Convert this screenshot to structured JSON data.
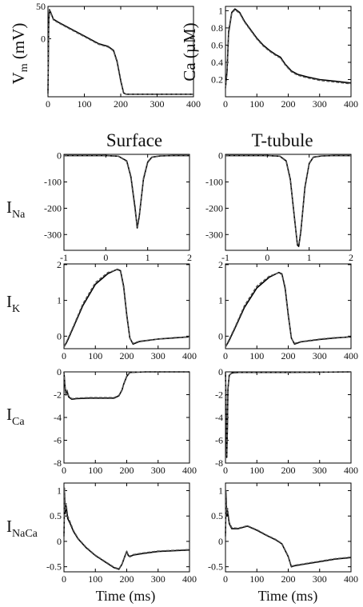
{
  "chart_data": [
    {
      "id": "vm",
      "type": "line",
      "ylabel": "V",
      "ylabel_sub": "m",
      "ylabel_unit": " (mV)",
      "xlim": [
        0,
        400
      ],
      "ylim": [
        -90,
        50
      ],
      "xticks": [
        0,
        100,
        200,
        300,
        400
      ],
      "yticks": [
        0,
        50
      ],
      "ytick_labels": [
        "0",
        "50"
      ],
      "series": [
        {
          "style": "solid",
          "x": [
            0,
            2,
            4,
            8,
            15,
            30,
            60,
            100,
            140,
            165,
            180,
            190,
            200,
            208,
            215,
            220,
            260,
            320,
            400
          ],
          "y": [
            -85,
            20,
            45,
            40,
            30,
            25,
            16,
            4,
            -8,
            -12,
            -18,
            -35,
            -65,
            -84,
            -86,
            -86,
            -86,
            -86,
            -86
          ]
        },
        {
          "style": "dashed",
          "x": [
            0,
            2,
            4,
            8,
            15,
            30,
            60,
            100,
            140,
            165,
            180,
            190,
            200,
            208,
            215,
            220,
            260,
            320,
            400
          ],
          "y": [
            -85,
            20,
            44,
            39,
            29,
            24,
            15,
            3,
            -9,
            -13,
            -19,
            -37,
            -67,
            -85,
            -86,
            -86,
            -86,
            -86,
            -86
          ]
        }
      ]
    },
    {
      "id": "ca",
      "type": "line",
      "ylabel": "Ca (µM)",
      "xlim": [
        0,
        400
      ],
      "ylim": [
        0,
        1.05
      ],
      "xticks": [
        0,
        100,
        200,
        300,
        400
      ],
      "yticks": [
        0.2,
        0.4,
        0.6,
        0.8,
        1
      ],
      "ytick_labels": [
        "0.2",
        "0.4",
        "0.6",
        "0.8",
        "1"
      ],
      "series": [
        {
          "style": "solid",
          "x": [
            0,
            5,
            10,
            20,
            30,
            45,
            60,
            80,
            100,
            120,
            140,
            160,
            175,
            190,
            210,
            230,
            260,
            300,
            350,
            400
          ],
          "y": [
            0.1,
            0.3,
            0.75,
            0.98,
            1.02,
            0.98,
            0.88,
            0.78,
            0.68,
            0.6,
            0.54,
            0.49,
            0.46,
            0.38,
            0.3,
            0.26,
            0.23,
            0.2,
            0.18,
            0.16
          ]
        },
        {
          "style": "dashed",
          "x": [
            0,
            5,
            10,
            20,
            30,
            45,
            60,
            80,
            100,
            120,
            140,
            160,
            175,
            190,
            210,
            230,
            260,
            300,
            350,
            400
          ],
          "y": [
            0.1,
            0.28,
            0.72,
            0.97,
            1.01,
            0.97,
            0.87,
            0.77,
            0.67,
            0.59,
            0.53,
            0.48,
            0.45,
            0.37,
            0.29,
            0.25,
            0.22,
            0.19,
            0.17,
            0.15
          ]
        }
      ]
    },
    {
      "id": "ina_s",
      "type": "line",
      "title": "Surface",
      "xlim": [
        -1,
        2
      ],
      "ylim": [
        -360,
        5
      ],
      "xticks": [
        -1,
        0,
        1,
        2
      ],
      "yticks": [
        0,
        -100,
        -200,
        -300
      ],
      "ytick_labels": [
        "0",
        "-100",
        "-200",
        "-300"
      ],
      "series": [
        {
          "style": "solid",
          "x": [
            -1,
            0,
            0.3,
            0.5,
            0.6,
            0.7,
            0.75,
            0.8,
            0.9,
            1.0,
            1.1,
            1.3,
            1.6,
            2
          ],
          "y": [
            0,
            0,
            -2,
            -20,
            -80,
            -200,
            -275,
            -230,
            -90,
            -25,
            -6,
            -1,
            0,
            0
          ]
        },
        {
          "style": "dashed",
          "x": [
            -1,
            0,
            0.3,
            0.5,
            0.6,
            0.7,
            0.75,
            0.8,
            0.9,
            1.0,
            1.1,
            1.3,
            1.6,
            2
          ],
          "y": [
            0,
            0,
            -2,
            -22,
            -85,
            -210,
            -270,
            -225,
            -85,
            -22,
            -5,
            -1,
            0,
            0
          ]
        }
      ]
    },
    {
      "id": "ina_t",
      "type": "line",
      "title": "T-tubule",
      "xlim": [
        -1,
        2
      ],
      "ylim": [
        -360,
        5
      ],
      "xticks": [
        -1,
        0,
        1,
        2
      ],
      "yticks": [
        0,
        -100,
        -200,
        -300
      ],
      "ytick_labels": [
        "0",
        "-100",
        "-200",
        "-300"
      ],
      "series": [
        {
          "style": "solid",
          "x": [
            -1,
            0,
            0.3,
            0.45,
            0.55,
            0.65,
            0.72,
            0.75,
            0.8,
            0.9,
            1.0,
            1.1,
            1.3,
            1.6,
            2
          ],
          "y": [
            0,
            0,
            -2,
            -20,
            -90,
            -240,
            -340,
            -345,
            -290,
            -120,
            -30,
            -6,
            -1,
            0,
            0
          ]
        },
        {
          "style": "dashed",
          "x": [
            -1,
            0,
            0.3,
            0.45,
            0.55,
            0.65,
            0.72,
            0.75,
            0.8,
            0.9,
            1.0,
            1.1,
            1.3,
            1.6,
            2
          ],
          "y": [
            0,
            0,
            -2,
            -22,
            -95,
            -245,
            -335,
            -340,
            -285,
            -115,
            -28,
            -5,
            -1,
            0,
            0
          ]
        }
      ]
    },
    {
      "id": "ik_s",
      "type": "line",
      "xlim": [
        0,
        400
      ],
      "ylim": [
        -0.35,
        2.02
      ],
      "xticks": [
        0,
        100,
        200,
        300,
        400
      ],
      "yticks": [
        0,
        1,
        2
      ],
      "ytick_labels": [
        "0",
        "1",
        "2"
      ],
      "series": [
        {
          "style": "solid",
          "x": [
            0,
            10,
            30,
            60,
            100,
            140,
            170,
            180,
            190,
            200,
            210,
            220,
            240,
            300,
            350,
            400
          ],
          "y": [
            -0.3,
            -0.15,
            0.25,
            0.85,
            1.45,
            1.75,
            1.87,
            1.83,
            1.4,
            0.6,
            -0.05,
            -0.22,
            -0.15,
            -0.08,
            -0.05,
            -0.02
          ]
        },
        {
          "style": "dashed",
          "x": [
            0,
            10,
            30,
            60,
            100,
            140,
            170,
            180,
            190,
            200,
            210,
            220,
            240,
            300,
            350,
            400
          ],
          "y": [
            -0.3,
            -0.12,
            0.28,
            0.9,
            1.5,
            1.78,
            1.86,
            1.8,
            1.35,
            0.55,
            -0.06,
            -0.2,
            -0.14,
            -0.08,
            -0.04,
            -0.02
          ]
        }
      ]
    },
    {
      "id": "ik_t",
      "type": "line",
      "xlim": [
        0,
        400
      ],
      "ylim": [
        -0.35,
        2.02
      ],
      "xticks": [
        0,
        100,
        200,
        300,
        400
      ],
      "yticks": [
        0,
        1,
        2
      ],
      "ytick_labels": [
        "0",
        "1",
        "2"
      ],
      "series": [
        {
          "style": "solid",
          "x": [
            0,
            10,
            30,
            60,
            100,
            140,
            170,
            180,
            190,
            200,
            210,
            220,
            240,
            300,
            350,
            400
          ],
          "y": [
            -0.3,
            -0.15,
            0.22,
            0.8,
            1.35,
            1.65,
            1.78,
            1.74,
            1.35,
            0.6,
            -0.05,
            -0.22,
            -0.16,
            -0.09,
            -0.05,
            -0.02
          ]
        },
        {
          "style": "dashed",
          "x": [
            0,
            10,
            30,
            60,
            100,
            140,
            170,
            180,
            190,
            200,
            210,
            220,
            240,
            300,
            350,
            400
          ],
          "y": [
            -0.3,
            -0.12,
            0.25,
            0.85,
            1.4,
            1.68,
            1.77,
            1.72,
            1.3,
            0.55,
            -0.06,
            -0.2,
            -0.15,
            -0.08,
            -0.04,
            -0.02
          ]
        }
      ]
    },
    {
      "id": "ica_s",
      "type": "line",
      "xlim": [
        0,
        400
      ],
      "ylim": [
        -8,
        0
      ],
      "xticks": [
        0,
        100,
        200,
        300,
        400
      ],
      "yticks": [
        0,
        -2,
        -4,
        -6,
        -8
      ],
      "ytick_labels": [
        "0",
        "-2",
        "-4",
        "-6",
        "-8"
      ],
      "series": [
        {
          "style": "solid",
          "x": [
            0,
            3,
            6,
            10,
            15,
            25,
            40,
            80,
            120,
            160,
            175,
            185,
            190,
            200,
            210,
            260,
            400
          ],
          "y": [
            0,
            -1.2,
            -2.0,
            -1.7,
            -2.2,
            -2.4,
            -2.35,
            -2.3,
            -2.3,
            -2.3,
            -2.1,
            -1.6,
            -1.1,
            -0.4,
            -0.05,
            0,
            0
          ]
        },
        {
          "style": "dashed",
          "x": [
            0,
            3,
            6,
            10,
            15,
            25,
            40,
            80,
            120,
            160,
            175,
            185,
            190,
            200,
            210,
            260,
            400
          ],
          "y": [
            0,
            -1.1,
            -2.1,
            -1.6,
            -2.1,
            -2.35,
            -2.3,
            -2.25,
            -2.25,
            -2.25,
            -2.05,
            -1.55,
            -1.05,
            -0.35,
            -0.05,
            0,
            0
          ]
        }
      ]
    },
    {
      "id": "ica_t",
      "type": "line",
      "xlim": [
        0,
        400
      ],
      "ylim": [
        -8,
        0
      ],
      "xticks": [
        0,
        100,
        200,
        300,
        400
      ],
      "yticks": [
        0,
        -2,
        -4,
        -6,
        -8
      ],
      "ytick_labels": [
        "0",
        "-2",
        "-4",
        "-6",
        "-8"
      ],
      "series": [
        {
          "style": "solid",
          "x": [
            0,
            2,
            4,
            6,
            8,
            12,
            20,
            40,
            100,
            200,
            400
          ],
          "y": [
            0,
            -3,
            -7.5,
            -5,
            -1.5,
            -0.3,
            -0.1,
            -0.05,
            -0.05,
            -0.05,
            0
          ]
        },
        {
          "style": "dashed",
          "x": [
            0,
            2,
            4,
            6,
            8,
            12,
            20,
            40,
            100,
            200,
            400
          ],
          "y": [
            0,
            -2.8,
            -7.3,
            -4.8,
            -1.4,
            -0.3,
            -0.1,
            -0.05,
            -0.05,
            -0.05,
            0
          ]
        }
      ]
    },
    {
      "id": "inaca_s",
      "type": "line",
      "xlim": [
        0,
        400
      ],
      "ylim": [
        -0.6,
        1.15
      ],
      "xticks": [
        0,
        100,
        200,
        300,
        400
      ],
      "yticks": [
        1,
        0.5,
        0,
        -0.5
      ],
      "ytick_labels": [
        "1",
        "0.5",
        "0",
        "-0.5"
      ],
      "series": [
        {
          "style": "solid",
          "x": [
            0,
            2,
            4,
            7,
            12,
            20,
            30,
            45,
            70,
            100,
            130,
            160,
            175,
            185,
            195,
            200,
            205,
            210,
            220,
            250,
            300,
            400
          ],
          "y": [
            0.1,
            0.9,
            0.55,
            0.7,
            0.45,
            0.35,
            0.2,
            0.05,
            -0.12,
            -0.28,
            -0.4,
            -0.52,
            -0.55,
            -0.45,
            -0.28,
            -0.2,
            -0.28,
            -0.3,
            -0.27,
            -0.24,
            -0.2,
            -0.17
          ]
        },
        {
          "style": "dashed",
          "x": [
            0,
            2,
            4,
            7,
            12,
            20,
            30,
            45,
            70,
            100,
            130,
            160,
            175,
            185,
            195,
            200,
            205,
            210,
            220,
            250,
            300,
            400
          ],
          "y": [
            0.1,
            1.05,
            0.6,
            0.75,
            0.5,
            0.38,
            0.22,
            0.06,
            -0.11,
            -0.27,
            -0.39,
            -0.51,
            -0.54,
            -0.44,
            -0.27,
            -0.19,
            -0.27,
            -0.29,
            -0.26,
            -0.23,
            -0.19,
            -0.16
          ]
        }
      ]
    },
    {
      "id": "inaca_t",
      "type": "line",
      "xlim": [
        0,
        400
      ],
      "ylim": [
        -0.6,
        1.15
      ],
      "xticks": [
        0,
        100,
        200,
        300,
        400
      ],
      "yticks": [
        1,
        0.5,
        0,
        -0.5
      ],
      "ytick_labels": [
        "1",
        "0.5",
        "0",
        "-0.5"
      ],
      "series": [
        {
          "style": "solid",
          "x": [
            0,
            2,
            4,
            7,
            12,
            20,
            40,
            70,
            100,
            130,
            160,
            180,
            200,
            210,
            220,
            250,
            300,
            350,
            400
          ],
          "y": [
            0.1,
            0.9,
            0.5,
            0.6,
            0.35,
            0.25,
            0.25,
            0.3,
            0.22,
            0.12,
            0.03,
            -0.05,
            -0.3,
            -0.5,
            -0.48,
            -0.45,
            -0.4,
            -0.35,
            -0.32
          ]
        },
        {
          "style": "dashed",
          "x": [
            0,
            2,
            4,
            7,
            12,
            20,
            40,
            70,
            100,
            130,
            160,
            180,
            200,
            210,
            220,
            250,
            300,
            350,
            400
          ],
          "y": [
            0.1,
            1.0,
            0.55,
            0.65,
            0.38,
            0.27,
            0.26,
            0.31,
            0.23,
            0.13,
            0.04,
            -0.04,
            -0.29,
            -0.49,
            -0.47,
            -0.44,
            -0.39,
            -0.34,
            -0.31
          ]
        }
      ]
    }
  ],
  "row_labels": [
    {
      "main": "I",
      "sub": "Na"
    },
    {
      "main": "I",
      "sub": "K"
    },
    {
      "main": "I",
      "sub": "Ca"
    },
    {
      "main": "I",
      "sub": "NaCa"
    }
  ],
  "xlabel": "Time (ms)"
}
